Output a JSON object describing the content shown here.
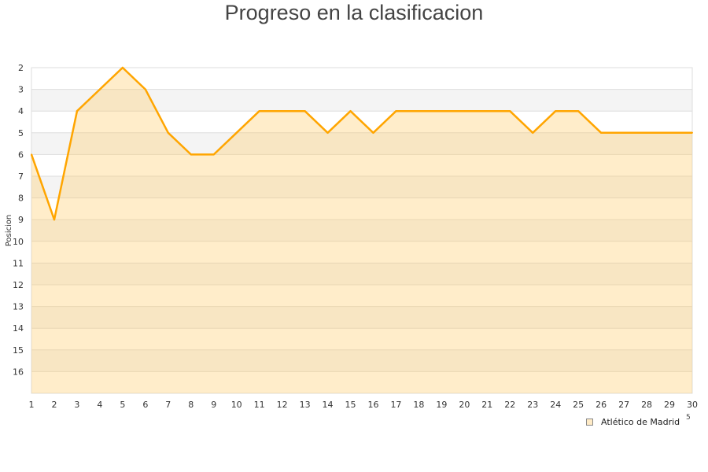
{
  "chart_data": {
    "type": "area",
    "title": "Progreso en la clasificacion",
    "ylabel": "Posicion",
    "xlabel": "",
    "x": [
      1,
      2,
      3,
      4,
      5,
      6,
      7,
      8,
      9,
      10,
      11,
      12,
      13,
      14,
      15,
      16,
      17,
      18,
      19,
      20,
      21,
      22,
      23,
      24,
      25,
      26,
      27,
      28,
      29,
      30
    ],
    "series": [
      {
        "name": "Atlético de Madrid",
        "values": [
          6,
          9,
          4,
          3,
          2,
          3,
          5,
          6,
          6,
          5,
          4,
          4,
          4,
          5,
          4,
          5,
          4,
          4,
          4,
          4,
          4,
          4,
          5,
          4,
          4,
          5,
          5,
          5,
          5,
          5
        ]
      }
    ],
    "ylim": [
      17,
      2
    ],
    "y_inverted": true,
    "yticks": [
      2,
      3,
      4,
      5,
      6,
      7,
      8,
      9,
      10,
      11,
      12,
      13,
      14,
      15,
      16
    ],
    "xlim": [
      1,
      30
    ],
    "grid": true,
    "legend": "bottom-right",
    "colors": {
      "line": "#ffa500",
      "fill": "#ffcc66",
      "band": "#f4f4f4"
    }
  },
  "stray_label": "5"
}
